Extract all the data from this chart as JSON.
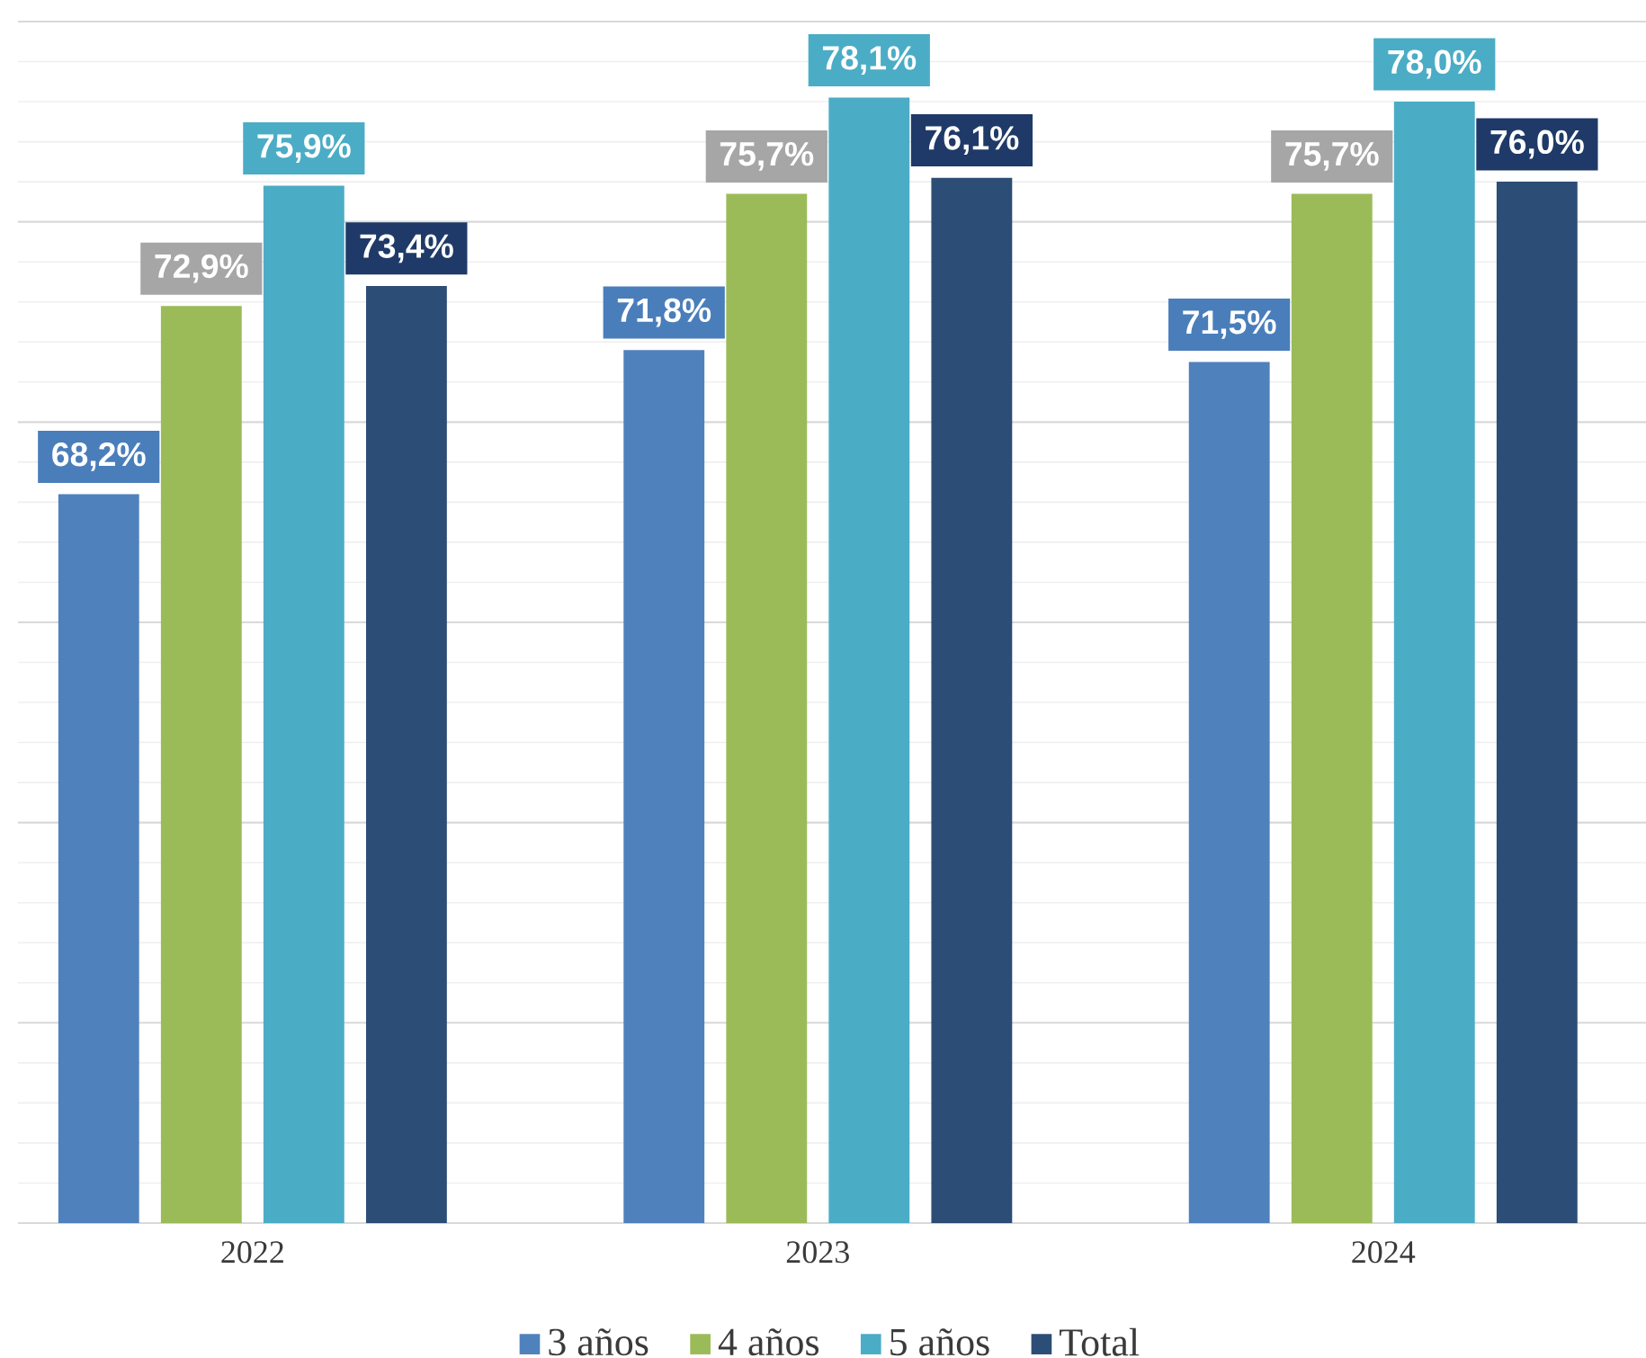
{
  "chart_data": {
    "type": "bar",
    "categories": [
      "2022",
      "2023",
      "2024"
    ],
    "series": [
      {
        "name": "3 años",
        "color": "#4f81bd",
        "values": [
          68.2,
          71.8,
          71.5
        ],
        "value_labels": [
          "68,2%",
          "71,8%",
          "71,5%"
        ]
      },
      {
        "name": "4 años",
        "color": "#9bbb59",
        "values": [
          72.9,
          75.7,
          75.7
        ],
        "value_labels": [
          "72,9%",
          "75,7%",
          "75,7%"
        ]
      },
      {
        "name": "5 años",
        "color": "#4bacc6",
        "values": [
          75.9,
          78.1,
          78.0
        ],
        "value_labels": [
          "75,9%",
          "78,1%",
          "78,0%"
        ]
      },
      {
        "name": "Total",
        "color": "#2c4d75",
        "values": [
          73.4,
          76.1,
          76.0
        ],
        "value_labels": [
          "73,4%",
          "76,1%",
          "76,0%"
        ]
      }
    ],
    "ylim": [
      50,
      80
    ],
    "yticks": [
      {
        "value": 50,
        "label": null
      },
      {
        "value": 55,
        "label": null
      },
      {
        "value": 60,
        "label": null
      },
      {
        "value": 65,
        "label": null
      },
      {
        "value": 70,
        "label": null
      },
      {
        "value": 75,
        "label": null
      },
      {
        "value": 80,
        "label": null
      }
    ],
    "tick_labels": "x",
    "grid": "y",
    "legend": "bottom"
  }
}
